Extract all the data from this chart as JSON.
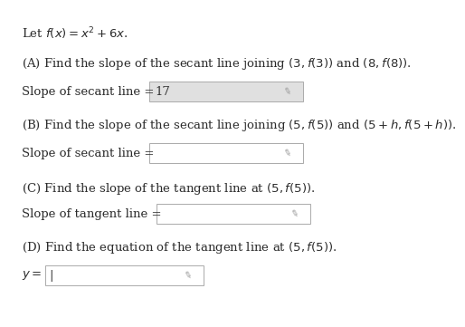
{
  "bg_color": "#ffffff",
  "text_color": "#2b2b2b",
  "box_color_filled": "#e0e0e0",
  "box_color_empty": "#ffffff",
  "box_border": "#aaaaaa",
  "title_line": "Let $f(x) = x^2 + 6x$.",
  "partA_question": "(A) Find the slope of the secant line joining $(3, f(3))$ and $(8, f(8))$.",
  "partA_label": "Slope of secant line = ",
  "partA_answer": "17",
  "partB_question": "(B) Find the slope of the secant line joining $(5, f(5))$ and $(5 + h, f(5 + h))$.",
  "partB_label": "Slope of secant line = ",
  "partC_question": "(C) Find the slope of the tangent line at $(5, f(5))$.",
  "partC_label": "Slope of tangent line = ",
  "partD_question": "(D) Find the equation of the tangent line at $(5, f(5))$.",
  "partD_label": "$y = $",
  "font_size": 9.5,
  "font_family": "DejaVu Serif"
}
